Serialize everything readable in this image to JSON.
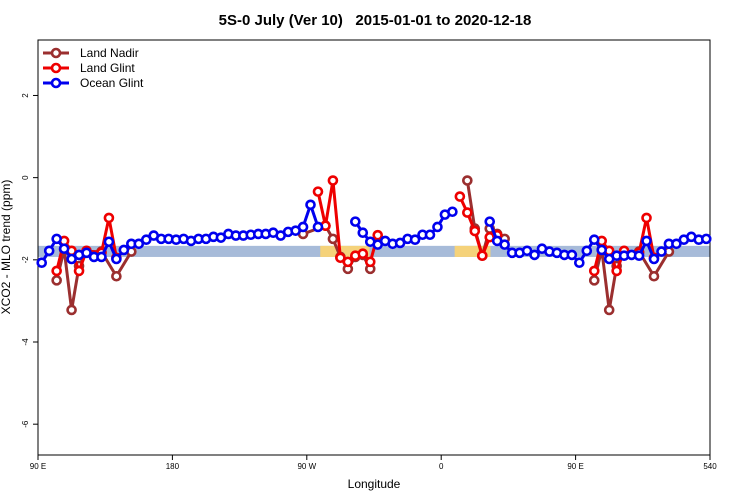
{
  "chart_data": {
    "type": "line",
    "title": "5S-0 July (Ver 10)   2015-01-01 to 2020-12-18",
    "xlabel": "Longitude",
    "ylabel": "XCO2 - MLO trend (ppm)",
    "xlim": [
      90,
      540
    ],
    "ylim": [
      -6.75,
      3.35
    ],
    "xticks": [
      {
        "value": 90,
        "label": "90 E"
      },
      180,
      {
        "value": 270,
        "label": "90 W"
      },
      {
        "value": 360,
        "label": "0"
      },
      {
        "value": 450,
        "label": "90 E"
      },
      540
    ],
    "yticks": [
      2,
      0,
      -2,
      -4,
      -6
    ],
    "band": [
      -1.93,
      -1.66
    ],
    "band_color": "#a7bbd9",
    "highlight_x": [
      [
        279,
        312
      ],
      [
        369,
        393
      ]
    ],
    "highlight_color": "#f5d27a",
    "legend": "top-left",
    "series": [
      {
        "name": "Land Nadir",
        "color": "#9b2f2f",
        "x": [
          102.5,
          107.5,
          112.5,
          117.5,
          122.5,
          132.5,
          142.5,
          152.5,
          160,
          267.5,
          282.5,
          287.5,
          292.5,
          297.5,
          302.5,
          307.5,
          312.5,
          340,
          377.5,
          382.5,
          387.5,
          392.5,
          397.5,
          402.5,
          430,
          462.5,
          467.5,
          472.5,
          477.5,
          482.5,
          492.5,
          502.5,
          512.5
        ],
        "values": [
          -2.5,
          -1.75,
          -3.22,
          -2.15,
          -1.8,
          -1.8,
          -2.4,
          -1.8,
          null,
          -1.37,
          -1.17,
          -1.49,
          -1.93,
          -2.22,
          -1.93,
          -1.88,
          -2.22,
          null,
          -0.07,
          -1.24,
          -1.9,
          -1.24,
          -1.37,
          -1.49,
          null,
          -2.5,
          -1.75,
          -3.22,
          -2.15,
          -1.8,
          -1.8,
          -2.4,
          -1.8
        ]
      },
      {
        "name": "Land Glint",
        "color": "#ee0000",
        "x": [
          102.5,
          107.5,
          112.5,
          117.5,
          122.5,
          132.5,
          137.5,
          142.5,
          200,
          277.5,
          282.5,
          287.5,
          292.5,
          297.5,
          302.5,
          307.5,
          312.5,
          317.5,
          340,
          372.5,
          377.5,
          382.5,
          387.5,
          392.5,
          397.5,
          430,
          462.5,
          467.5,
          472.5,
          477.5,
          482.5,
          492.5,
          497.5,
          502.5
        ],
        "values": [
          -2.27,
          -1.54,
          -1.78,
          -2.27,
          -1.78,
          -1.83,
          -0.98,
          -1.95,
          null,
          -0.34,
          -1.17,
          -0.07,
          -1.95,
          -2.05,
          -1.9,
          -1.85,
          -2.05,
          -1.4,
          null,
          -0.46,
          -0.85,
          -1.3,
          -1.9,
          -1.45,
          -1.4,
          null,
          -2.27,
          -1.54,
          -1.78,
          -2.27,
          -1.78,
          -1.83,
          -0.98,
          -1.95
        ]
      },
      {
        "name": "Ocean Glint",
        "color": "#0000ee",
        "x": [
          92.5,
          97.5,
          102.5,
          107.5,
          112.5,
          117.5,
          122.5,
          127.5,
          132.5,
          137.5,
          142.5,
          147.5,
          152.5,
          157.5,
          162.5,
          167.5,
          172.5,
          177.5,
          182.5,
          187.5,
          192.5,
          197.5,
          202.5,
          207.5,
          212.5,
          217.5,
          222.5,
          227.5,
          232.5,
          237.5,
          242.5,
          247.5,
          252.5,
          257.5,
          262.5,
          267.5,
          272.5,
          277.5,
          290,
          302.5,
          307.5,
          312.5,
          317.5,
          322.5,
          327.5,
          332.5,
          337.5,
          342.5,
          347.5,
          352.5,
          357.5,
          362.5,
          367.5,
          380,
          392.5,
          397.5,
          402.5,
          407.5,
          412.5,
          417.5,
          422.5,
          427.5,
          432.5,
          437.5,
          442.5,
          447.5,
          452.5,
          457.5,
          462.5,
          467.5,
          472.5,
          477.5,
          482.5,
          487.5,
          492.5,
          497.5,
          502.5,
          507.5,
          512.5,
          517.5,
          522.5,
          527.5,
          532.5,
          537.5
        ],
        "values": [
          -2.07,
          -1.78,
          -1.49,
          -1.73,
          -1.98,
          -1.88,
          -1.83,
          -1.93,
          -1.93,
          -1.56,
          -1.98,
          -1.76,
          -1.61,
          -1.61,
          -1.51,
          -1.41,
          -1.49,
          -1.49,
          -1.51,
          -1.49,
          -1.54,
          -1.49,
          -1.49,
          -1.44,
          -1.46,
          -1.37,
          -1.41,
          -1.41,
          -1.39,
          -1.37,
          -1.37,
          -1.34,
          -1.41,
          -1.32,
          -1.29,
          -1.2,
          -0.66,
          -1.2,
          null,
          -1.07,
          -1.34,
          -1.56,
          -1.63,
          -1.54,
          -1.61,
          -1.59,
          -1.49,
          -1.51,
          -1.39,
          -1.39,
          -1.2,
          -0.9,
          -0.83,
          null,
          -1.07,
          -1.54,
          -1.63,
          -1.83,
          -1.83,
          -1.78,
          -1.88,
          -1.73,
          -1.8,
          -1.83,
          -1.88,
          -1.88,
          -2.07,
          -1.78,
          -1.51,
          -1.76,
          -1.98,
          -1.9,
          -1.9,
          -1.88,
          -1.9,
          -1.54,
          -1.98,
          -1.8,
          -1.61,
          -1.61,
          -1.51,
          -1.44,
          -1.51,
          -1.49
        ]
      }
    ]
  }
}
